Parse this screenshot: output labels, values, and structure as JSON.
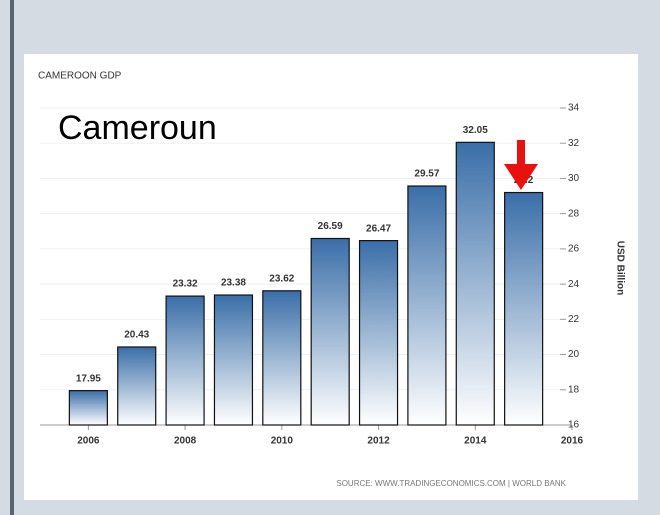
{
  "chart_data": {
    "type": "bar",
    "title": "CAMEROON GDP",
    "annotation": "Cameroun",
    "source": "SOURCE: WWW.TRADINGECONOMICS.COM | WORLD BANK",
    "ylabel": "USD Billion",
    "x": [
      2006,
      2007,
      2008,
      2009,
      2010,
      2011,
      2012,
      2013,
      2014,
      2015
    ],
    "values": [
      17.95,
      20.43,
      23.32,
      23.38,
      23.62,
      26.59,
      26.47,
      29.57,
      32.05,
      29.2
    ],
    "color": "#3a6ea8",
    "xlim": [
      2005,
      2016
    ],
    "xticks": [
      2006,
      2008,
      2010,
      2012,
      2014,
      2016
    ],
    "ylim": [
      16,
      34
    ],
    "yticks": [
      16,
      18,
      20,
      22,
      24,
      26,
      28,
      30,
      32,
      34
    ],
    "grid": true
  }
}
